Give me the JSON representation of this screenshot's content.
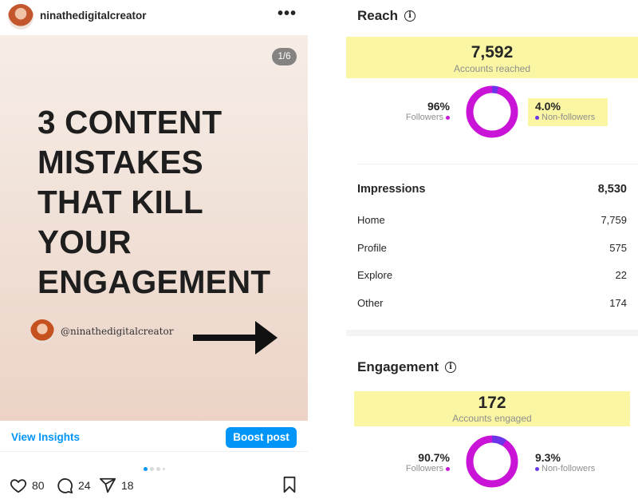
{
  "post": {
    "username": "ninathedigitalcreator",
    "more_icon": "more-horizontal-icon",
    "page_badge": "1/6",
    "headline_lines": [
      "3 CONTENT",
      "MISTAKES",
      "THAT KILL",
      "YOUR",
      "ENGAGEMENT"
    ],
    "creator_handle": "@ninathedigitalcreator",
    "view_insights_label": "View Insights",
    "boost_label": "Boost post",
    "carousel": {
      "total_visible_dots": 4,
      "active_index": 0
    },
    "likes": "80",
    "comments": "24",
    "shares": "18"
  },
  "insights": {
    "reach": {
      "title": "Reach",
      "accounts_reached": "7,592",
      "accounts_reached_label": "Accounts reached",
      "followers_pct": "96%",
      "followers_label": "Followers",
      "followers_fraction": 0.96,
      "nonfollowers_pct": "4.0%",
      "nonfollowers_label": "Non-followers"
    },
    "impressions": {
      "title": "Impressions",
      "total": "8,530",
      "rows": [
        {
          "label": "Home",
          "value": "7,759"
        },
        {
          "label": "Profile",
          "value": "575"
        },
        {
          "label": "Explore",
          "value": "22"
        },
        {
          "label": "Other",
          "value": "174"
        }
      ]
    },
    "engagement": {
      "title": "Engagement",
      "accounts_engaged": "172",
      "accounts_engaged_label": "Accounts engaged",
      "followers_pct": "90.7%",
      "followers_label": "Followers",
      "followers_fraction": 0.907,
      "nonfollowers_pct": "9.3%",
      "nonfollowers_label": "Non-followers"
    }
  },
  "colors": {
    "accent_blue": "#0095f6",
    "followers_magenta": "#c913d6",
    "nonfollowers_purple": "#6a35e8",
    "highlight_yellow": "#fbf6a3"
  }
}
